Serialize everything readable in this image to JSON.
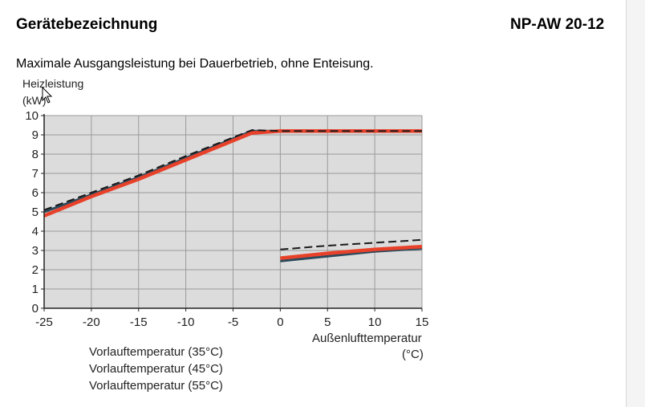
{
  "header": {
    "title": "Gerätebezeichnung",
    "model": "NP-AW 20-12"
  },
  "subtitle": "Maximale Ausgangsleistung bei Dauerbetrieb, ohne Enteisung.",
  "colors": {
    "series_35": "#e8412a",
    "series_45": "#2b4a5c",
    "series_55": "#1a1a1a",
    "plot_bg": "#dcdcdc",
    "grid": "#9a9a9a"
  },
  "chart_data": {
    "type": "line",
    "ylabel_line1": "Heizleistung",
    "ylabel_line2": "(kW)",
    "xlabel_line1": "Außenlufttemperatur",
    "xlabel_line2": "(°C)",
    "xlim": [
      -25,
      15
    ],
    "ylim": [
      0,
      10
    ],
    "xticks": [
      -25,
      -20,
      -15,
      -10,
      -5,
      0,
      5,
      10,
      15
    ],
    "yticks": [
      0,
      1,
      2,
      3,
      4,
      5,
      6,
      7,
      8,
      9,
      10
    ],
    "grid": true,
    "legend_position": "bottom-left",
    "series": [
      {
        "name": "Vorlauftemperatur (35°C)",
        "style": "solid-thick",
        "segments": [
          [
            [
              -25,
              4.8
            ],
            [
              -20,
              5.8
            ],
            [
              -15,
              6.7
            ],
            [
              -10,
              7.7
            ],
            [
              -3,
              9.1
            ],
            [
              0,
              9.2
            ],
            [
              15,
              9.2
            ]
          ],
          [
            [
              0,
              2.6
            ],
            [
              5,
              2.85
            ],
            [
              10,
              3.05
            ],
            [
              15,
              3.2
            ]
          ]
        ]
      },
      {
        "name": "Vorlauftemperatur (45°C)",
        "style": "solid",
        "segments": [
          [
            [
              -25,
              5.0
            ],
            [
              -20,
              5.9
            ],
            [
              -15,
              6.8
            ],
            [
              -10,
              7.8
            ],
            [
              -3,
              9.2
            ],
            [
              0,
              9.2
            ],
            [
              15,
              9.2
            ]
          ],
          [
            [
              0,
              2.45
            ],
            [
              5,
              2.7
            ],
            [
              10,
              2.95
            ],
            [
              15,
              3.1
            ]
          ]
        ]
      },
      {
        "name": "Vorlauftemperatur (55°C)",
        "style": "dashed",
        "segments": [
          [
            [
              -25,
              5.1
            ],
            [
              -20,
              6.0
            ],
            [
              -15,
              6.9
            ],
            [
              -10,
              7.9
            ],
            [
              -3,
              9.25
            ],
            [
              0,
              9.2
            ],
            [
              15,
              9.2
            ]
          ],
          [
            [
              0,
              3.05
            ],
            [
              5,
              3.25
            ],
            [
              10,
              3.4
            ],
            [
              15,
              3.55
            ]
          ]
        ]
      }
    ]
  }
}
